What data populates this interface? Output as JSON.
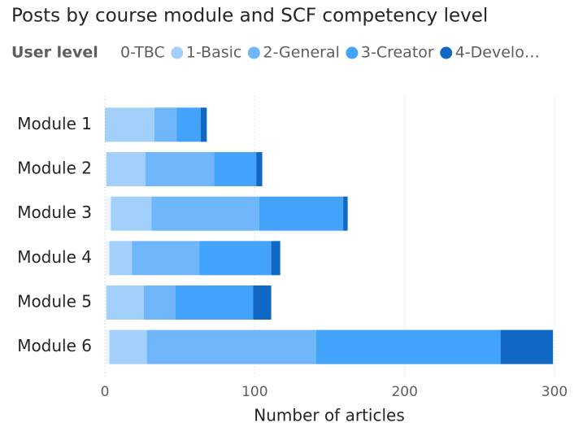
{
  "chart_data": {
    "type": "bar",
    "orientation": "horizontal",
    "stacked": true,
    "title": "Posts by course module and SCF competency level",
    "legend_title": "User level",
    "categories": [
      "Module 1",
      "Module 2",
      "Module 3",
      "Module 4",
      "Module 5",
      "Module 6"
    ],
    "series": [
      {
        "name": "0-TBC",
        "color": "#eef5fc",
        "values": [
          0,
          1,
          4,
          3,
          1,
          3
        ]
      },
      {
        "name": "1-Basic",
        "color": "#a3d0fb",
        "values": [
          33,
          26,
          27,
          15,
          25,
          25
        ]
      },
      {
        "name": "2-General",
        "color": "#6fb6fb",
        "values": [
          15,
          46,
          72,
          45,
          21,
          113
        ]
      },
      {
        "name": "3-Creator",
        "color": "#43a2f9",
        "values": [
          16,
          28,
          56,
          48,
          52,
          123
        ]
      },
      {
        "name": "4-Develo…",
        "color": "#1168c4",
        "values": [
          4,
          4,
          3,
          6,
          12,
          35
        ]
      }
    ],
    "xlabel": "Number of articles",
    "xlim": [
      0,
      300
    ],
    "xticks": [
      0,
      100,
      200,
      300
    ],
    "grid": true
  }
}
